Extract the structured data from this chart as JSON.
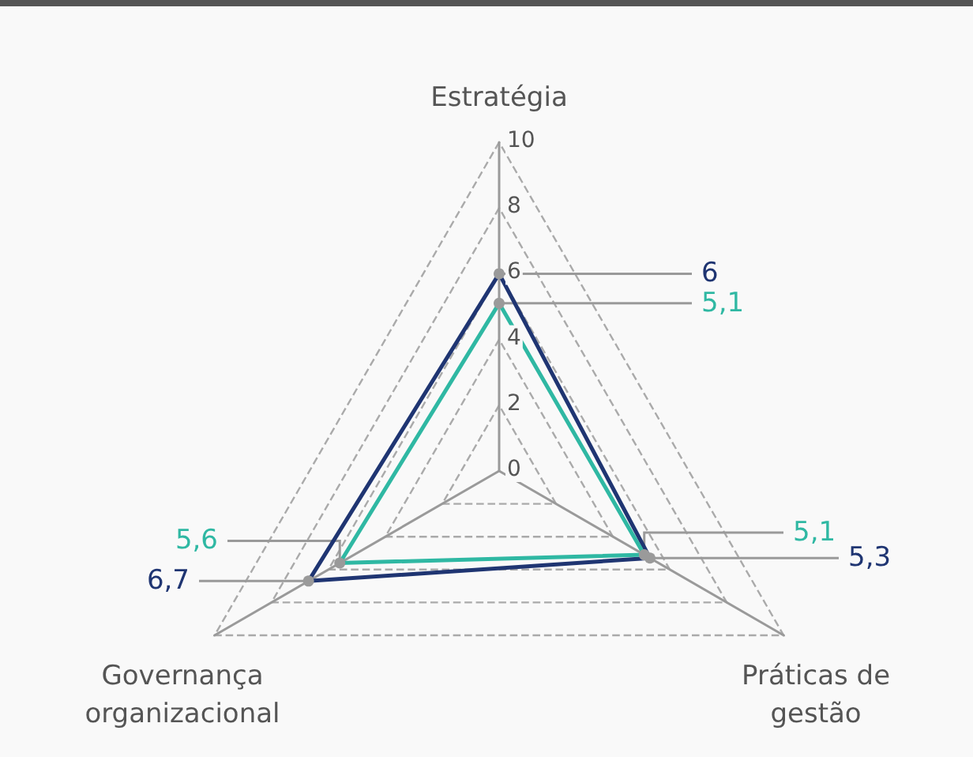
{
  "chart_data": {
    "type": "radar",
    "categories": [
      "Estratégia",
      "Práticas de gestão",
      "Governança organizacional"
    ],
    "series": [
      {
        "color": "#1f3572",
        "values": [
          6,
          5.3,
          6.7
        ],
        "value_labels": [
          "6",
          "5,3",
          "6,7"
        ]
      },
      {
        "color": "#2fb8a3",
        "values": [
          5.1,
          5.1,
          5.6
        ],
        "value_labels": [
          "5,1",
          "5,1",
          "5,6"
        ]
      }
    ],
    "ylim": [
      0,
      10
    ],
    "yticks": [
      0,
      2,
      4,
      6,
      8,
      10
    ],
    "grid": true,
    "line_style": "solid",
    "marker": "circle"
  }
}
